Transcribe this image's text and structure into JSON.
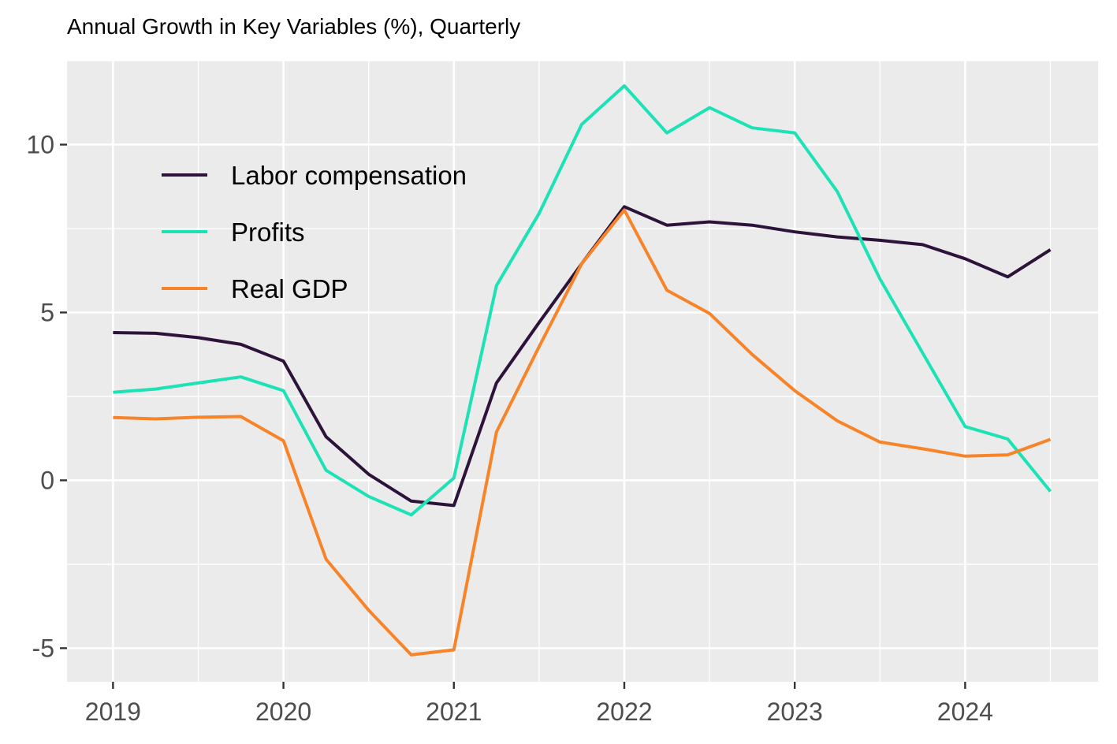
{
  "chart_data": {
    "type": "line",
    "title": "Annual Growth in Key Variables (%), Quarterly",
    "xlabel": "",
    "ylabel": "",
    "x_ticks": [
      "2019",
      "2020",
      "2021",
      "2022",
      "2023",
      "2024"
    ],
    "y_ticks": [
      "-5",
      "0",
      "5",
      "10"
    ],
    "xlim": [
      2018.73,
      2024.78
    ],
    "ylim": [
      -6.0,
      12.5
    ],
    "grid": true,
    "legend_position": "top-left",
    "x": [
      2019.0,
      2019.25,
      2019.5,
      2019.75,
      2020.0,
      2020.25,
      2020.5,
      2020.75,
      2021.0,
      2021.25,
      2021.5,
      2021.75,
      2022.0,
      2022.25,
      2022.5,
      2022.75,
      2023.0,
      2023.25,
      2023.5,
      2023.75,
      2024.0,
      2024.25,
      2024.5
    ],
    "series": [
      {
        "name": "Labor compensation",
        "color": "#2d1339",
        "values": [
          4.4,
          4.38,
          4.25,
          4.05,
          3.55,
          1.3,
          0.18,
          -0.62,
          -0.75,
          2.9,
          4.7,
          6.45,
          8.15,
          7.6,
          7.7,
          7.6,
          7.4,
          7.25,
          7.15,
          7.02,
          6.6,
          6.06,
          6.87
        ]
      },
      {
        "name": "Profits",
        "color": "#1de2b5",
        "values": [
          2.62,
          2.72,
          2.9,
          3.08,
          2.67,
          0.3,
          -0.48,
          -1.03,
          0.07,
          5.8,
          7.95,
          10.6,
          11.75,
          10.35,
          11.1,
          10.5,
          10.35,
          8.6,
          6.0,
          3.8,
          1.6,
          1.23,
          -0.33
        ]
      },
      {
        "name": "Real GDP",
        "color": "#f8842a",
        "values": [
          1.87,
          1.83,
          1.88,
          1.9,
          1.18,
          -2.35,
          -3.87,
          -5.2,
          -5.05,
          1.44,
          3.98,
          6.45,
          8.05,
          5.66,
          4.97,
          3.75,
          2.67,
          1.77,
          1.14,
          0.94,
          0.72,
          0.76,
          1.22
        ]
      }
    ]
  }
}
